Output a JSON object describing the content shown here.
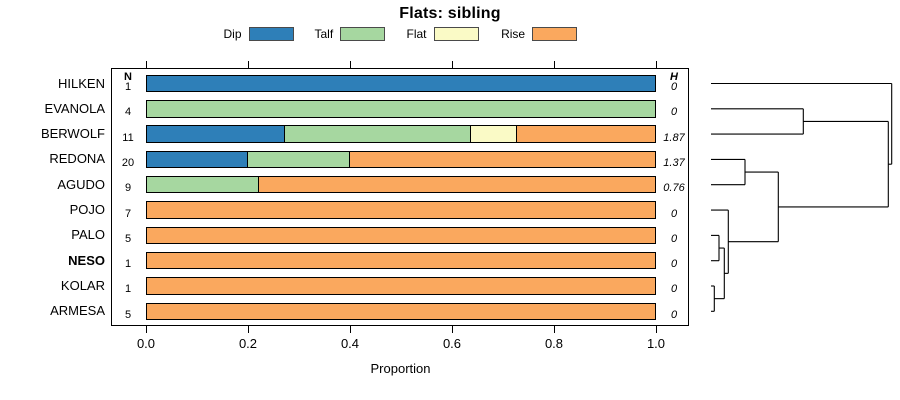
{
  "title": "Flats: sibling",
  "legend": {
    "items": [
      {
        "label": "Dip",
        "color": "#2E7FB8"
      },
      {
        "label": "Talf",
        "color": "#A6D7A0"
      },
      {
        "label": "Flat",
        "color": "#FAFAC6"
      },
      {
        "label": "Rise",
        "color": "#FAA85E"
      }
    ]
  },
  "columns": {
    "n_header": "N",
    "h_header": "H"
  },
  "x_axis": {
    "title": "Proportion",
    "ticks": [
      "0.0",
      "0.2",
      "0.4",
      "0.6",
      "0.8",
      "1.0"
    ]
  },
  "rows": [
    {
      "label": "HILKEN",
      "bold": false,
      "n": "1",
      "h": "0",
      "segments": [
        {
          "category": "Dip",
          "value": 1.0
        }
      ]
    },
    {
      "label": "EVANOLA",
      "bold": false,
      "n": "4",
      "h": "0",
      "segments": [
        {
          "category": "Talf",
          "value": 1.0
        }
      ]
    },
    {
      "label": "BERWOLF",
      "bold": false,
      "n": "11",
      "h": "1.87",
      "segments": [
        {
          "category": "Dip",
          "value": 0.273
        },
        {
          "category": "Talf",
          "value": 0.364
        },
        {
          "category": "Flat",
          "value": 0.091
        },
        {
          "category": "Rise",
          "value": 0.272
        }
      ]
    },
    {
      "label": "REDONA",
      "bold": false,
      "n": "20",
      "h": "1.37",
      "segments": [
        {
          "category": "Dip",
          "value": 0.2
        },
        {
          "category": "Talf",
          "value": 0.2
        },
        {
          "category": "Rise",
          "value": 0.6
        }
      ]
    },
    {
      "label": "AGUDO",
      "bold": false,
      "n": "9",
      "h": "0.76",
      "segments": [
        {
          "category": "Talf",
          "value": 0.222
        },
        {
          "category": "Rise",
          "value": 0.778
        }
      ]
    },
    {
      "label": "POJO",
      "bold": false,
      "n": "7",
      "h": "0",
      "segments": [
        {
          "category": "Rise",
          "value": 1.0
        }
      ]
    },
    {
      "label": "PALO",
      "bold": false,
      "n": "5",
      "h": "0",
      "segments": [
        {
          "category": "Rise",
          "value": 1.0
        }
      ]
    },
    {
      "label": "NESO",
      "bold": true,
      "n": "1",
      "h": "0",
      "segments": [
        {
          "category": "Rise",
          "value": 1.0
        }
      ]
    },
    {
      "label": "KOLAR",
      "bold": false,
      "n": "1",
      "h": "0",
      "segments": [
        {
          "category": "Rise",
          "value": 1.0
        }
      ]
    },
    {
      "label": "ARMESA",
      "bold": false,
      "n": "5",
      "h": "0",
      "segments": [
        {
          "category": "Rise",
          "value": 1.0
        }
      ]
    }
  ],
  "dendrogram": {
    "structure": "(HILKEN,((EVANOLA,BERWOLF),((REDONA,AGUDO),(POJO,((PALO,NESO),(KOLAR,ARMESA))))))",
    "segments": [
      [
        11,
        23.5,
        191.7,
        23.5
      ],
      [
        11,
        48.8,
        103.3,
        48.8
      ],
      [
        11,
        74.1,
        103.3,
        74.1
      ],
      [
        11,
        99.4,
        45,
        99.4
      ],
      [
        11,
        124.7,
        45,
        124.7
      ],
      [
        11,
        150.1,
        28.3,
        150.1
      ],
      [
        11,
        175.4,
        19,
        175.4
      ],
      [
        11,
        200.7,
        19,
        200.7
      ],
      [
        11,
        226,
        14.3,
        226
      ],
      [
        11,
        251.3,
        14.3,
        251.3
      ],
      [
        103.3,
        48.8,
        103.3,
        74.1
      ],
      [
        103.3,
        61.45,
        188.3,
        61.45
      ],
      [
        45,
        99.4,
        45,
        124.7
      ],
      [
        45,
        112.05,
        78.3,
        112.05
      ],
      [
        19,
        175.4,
        19,
        200.7
      ],
      [
        19,
        188.05,
        24.3,
        188.05
      ],
      [
        14.3,
        226,
        14.3,
        251.3
      ],
      [
        14.3,
        238.65,
        24.3,
        238.65
      ],
      [
        24.3,
        188.05,
        24.3,
        238.65
      ],
      [
        24.3,
        213.35,
        28.3,
        213.35
      ],
      [
        28.3,
        150.1,
        28.3,
        213.35
      ],
      [
        28.3,
        181.7,
        78.3,
        181.7
      ],
      [
        78.3,
        112.05,
        78.3,
        181.7
      ],
      [
        78.3,
        146.9,
        188.3,
        146.9
      ],
      [
        188.3,
        61.45,
        188.3,
        146.9
      ],
      [
        188.3,
        104.2,
        191.7,
        104.2
      ],
      [
        191.7,
        23.5,
        191.7,
        104.2
      ]
    ]
  },
  "chart_data": {
    "type": "bar",
    "orientation": "horizontal-stacked",
    "title": "Flats: sibling",
    "xlabel": "Proportion",
    "xlim": [
      0,
      1
    ],
    "x_ticks": [
      0.0,
      0.2,
      0.4,
      0.6,
      0.8,
      1.0
    ],
    "legend_position": "top",
    "grid": false,
    "categories": [
      "HILKEN",
      "EVANOLA",
      "BERWOLF",
      "REDONA",
      "AGUDO",
      "POJO",
      "PALO",
      "NESO",
      "KOLAR",
      "ARMESA"
    ],
    "series": [
      {
        "name": "Dip",
        "color": "#2E7FB8",
        "values": [
          1,
          0,
          0.273,
          0.2,
          0,
          0,
          0,
          0,
          0,
          0
        ]
      },
      {
        "name": "Talf",
        "color": "#A6D7A0",
        "values": [
          0,
          1,
          0.364,
          0.2,
          0.222,
          0,
          0,
          0,
          0,
          0
        ]
      },
      {
        "name": "Flat",
        "color": "#FAFAC6",
        "values": [
          0,
          0,
          0.091,
          0,
          0,
          0,
          0,
          0,
          0,
          0
        ]
      },
      {
        "name": "Rise",
        "color": "#FAA85E",
        "values": [
          0,
          0,
          0.272,
          0.6,
          0.778,
          1,
          1,
          1,
          1,
          1
        ]
      }
    ],
    "N": [
      1,
      4,
      11,
      20,
      9,
      7,
      5,
      1,
      1,
      5
    ],
    "H": [
      0,
      0,
      1.87,
      1.37,
      0.76,
      0,
      0,
      0,
      0,
      0
    ],
    "right_panel": "dendrogram"
  }
}
